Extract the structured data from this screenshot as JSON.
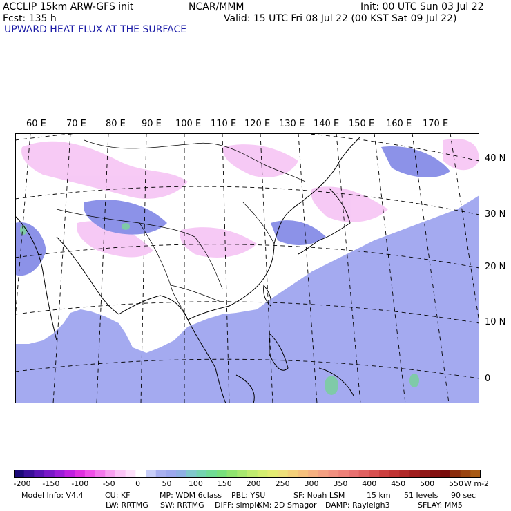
{
  "header": {
    "model": "ACCLIP 15km ARW-GFS init",
    "org": "NCAR/MMM",
    "init": "Init: 00 UTC Sun 03 Jul 22",
    "fcst": "Fcst:  135 h",
    "valid": "Valid: 15 UTC Fri 08 Jul 22 (00 KST Sat 09 Jul 22)",
    "field": "UPWARD HEAT FLUX AT THE SURFACE"
  },
  "map": {
    "lon_labels": [
      "60 E",
      "70 E",
      "80 E",
      "90 E",
      "100 E",
      "110 E",
      "120 E",
      "130 E",
      "140 E",
      "150 E",
      "160 E",
      "170 E"
    ],
    "lat_labels": [
      "40 N",
      "30 N",
      "20 N",
      "10 N",
      "0"
    ]
  },
  "colorbar": {
    "tick_labels": [
      "-200",
      "-150",
      "-100",
      "-50",
      "0",
      "50",
      "100",
      "150",
      "200",
      "250",
      "300",
      "350",
      "400",
      "450",
      "500",
      "550"
    ],
    "unit": "W m-2",
    "colors": [
      "#1c0a78",
      "#3a0f98",
      "#5a14b4",
      "#7a18c8",
      "#9c1cd8",
      "#c020e0",
      "#e030e0",
      "#f050e8",
      "#f478ec",
      "#f8a0f0",
      "#fbc4f6",
      "#fde0fa",
      "#ffffff",
      "#c8cef8",
      "#a8b0f0",
      "#9ca8ee",
      "#8fb0e4",
      "#80c8cc",
      "#74d4b0",
      "#70dc94",
      "#78e07c",
      "#90e470",
      "#a8e870",
      "#c0ec70",
      "#d4ee70",
      "#e4ec72",
      "#eee07a",
      "#f4d07a",
      "#f6c07c",
      "#f6b080",
      "#f4a082",
      "#f29080",
      "#ee8078",
      "#e87070",
      "#e06060",
      "#d85050",
      "#cc4040",
      "#c03434",
      "#b02828",
      "#a01e1e",
      "#901818",
      "#841010",
      "#780c0c",
      "#8a2c0c",
      "#9a4410",
      "#a85a14"
    ]
  },
  "footer": {
    "line1": [
      "Model Info: V4.4",
      "CU: KF",
      "MP: WDM 6class",
      "PBL: YSU",
      "SF: Noah LSM",
      "15 km",
      "51 levels",
      "90 sec"
    ],
    "line2": [
      "LW: RRTMG",
      "SW: RRTMG",
      "DIFF: simple",
      "KM: 2D Smagor",
      "DAMP: Rayleigh3",
      "SFLAY: MM5"
    ]
  }
}
